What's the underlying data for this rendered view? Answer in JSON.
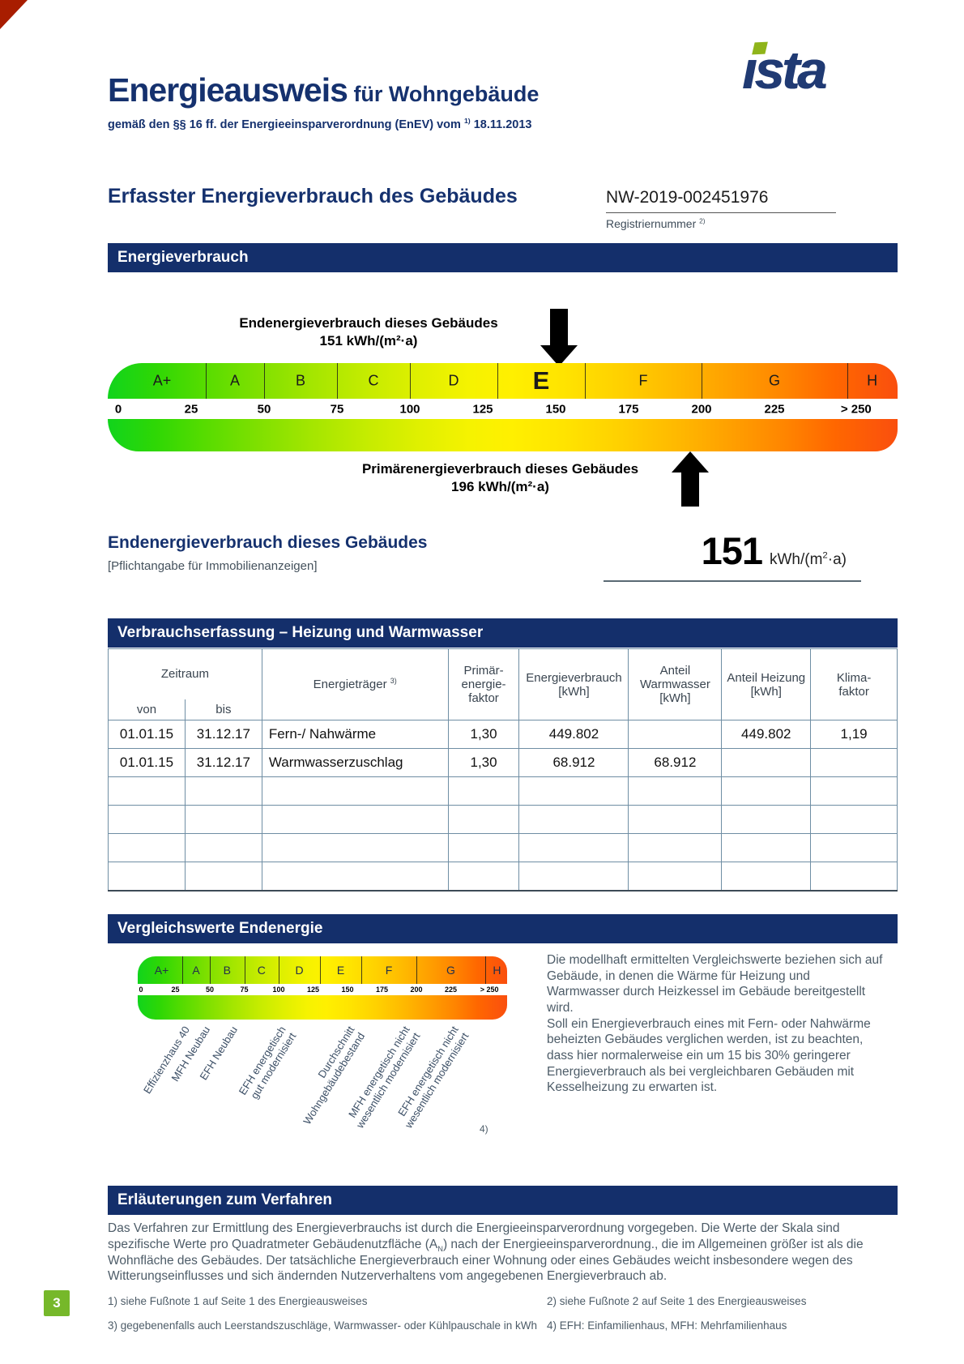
{
  "page": {
    "number": "3"
  },
  "colors": {
    "navy": "#142f6b",
    "badge_green": "#76b82a",
    "logo_green": "#8fb41a",
    "table_border": "#6f8ea4",
    "body_slate": "#4d5c68",
    "scale_gradient": [
      "#11d41c",
      "#55dc00",
      "#a5e600",
      "#e2f000",
      "#fff000",
      "#ffd000",
      "#ff9f00",
      "#ff6700",
      "#fa4f0e"
    ]
  },
  "header": {
    "title": "Energieausweis",
    "title_suffix": " für Wohngebäude",
    "subtitle_prefix": "gemäß den §§ 16 ff. der Energieeinsparverordnung (EnEV) vom ",
    "subtitle_sup": "1)",
    "subtitle_date": " 18.11.2013",
    "logo_text": "ısta"
  },
  "section_heading": "Erfasster Energieverbrauch des Gebäudes",
  "registration": {
    "number": "NW-2019-002451976",
    "label": "Registriernummer ",
    "label_sup": "2)"
  },
  "banners": {
    "energy_consumption": "Energieverbrauch",
    "consumption_table": "Verbrauchserfassung – Heizung und Warmwasser",
    "comparison": "Vergleichswerte Endenergie",
    "explanation": "Erläuterungen zum Verfahren"
  },
  "chart_data": [
    {
      "type": "scale",
      "title": "Energieverbrauch",
      "xlabel": "kWh/(m²·a)",
      "axis_range": [
        0,
        267
      ],
      "bands": [
        {
          "label": "A+",
          "from": 0,
          "to": 30
        },
        {
          "label": "A",
          "from": 30,
          "to": 50
        },
        {
          "label": "B",
          "from": 50,
          "to": 75
        },
        {
          "label": "C",
          "from": 75,
          "to": 100
        },
        {
          "label": "D",
          "from": 100,
          "to": 130
        },
        {
          "label": "E",
          "from": 130,
          "to": 160,
          "emphasized": true
        },
        {
          "label": "F",
          "from": 160,
          "to": 200
        },
        {
          "label": "G",
          "from": 200,
          "to": 250
        },
        {
          "label": "H",
          "from": 250,
          "to": 267
        }
      ],
      "ticks": [
        "0",
        "25",
        "50",
        "75",
        "100",
        "125",
        "150",
        "175",
        "200",
        "225",
        "> 250"
      ],
      "tick_values": [
        0,
        25,
        50,
        75,
        100,
        125,
        150,
        175,
        200,
        225,
        253
      ],
      "markers": [
        {
          "name": "Endenergieverbrauch",
          "value": 151,
          "direction": "down",
          "label_line1": "Endenergieverbrauch dieses Gebäudes",
          "label_line2": "151 kWh/(m²·a)"
        },
        {
          "name": "Primärenergieverbrauch",
          "value": 196,
          "direction": "up",
          "label_line1": "Primärenergieverbrauch dieses Gebäudes",
          "label_line2": "196 kWh/(m²·a)"
        }
      ]
    },
    {
      "type": "scale",
      "title": "Vergleichswerte Endenergie",
      "xlabel": "kWh/(m²·a)",
      "axis_range": [
        0,
        267
      ],
      "bands": [
        {
          "label": "A+",
          "from": 0,
          "to": 30
        },
        {
          "label": "A",
          "from": 30,
          "to": 50
        },
        {
          "label": "B",
          "from": 50,
          "to": 75
        },
        {
          "label": "C",
          "from": 75,
          "to": 100
        },
        {
          "label": "D",
          "from": 100,
          "to": 130
        },
        {
          "label": "E",
          "from": 130,
          "to": 160
        },
        {
          "label": "F",
          "from": 160,
          "to": 200
        },
        {
          "label": "G",
          "from": 200,
          "to": 250
        },
        {
          "label": "H",
          "from": 250,
          "to": 267
        }
      ],
      "ticks": [
        "0",
        "25",
        "50",
        "75",
        "100",
        "125",
        "150",
        "175",
        "200",
        "225",
        "> 250"
      ],
      "tick_values": [
        0,
        25,
        50,
        75,
        100,
        125,
        150,
        175,
        200,
        225,
        253
      ],
      "reference_labels": [
        {
          "text": "Effizienzhaus 40",
          "value": 30
        },
        {
          "text": "MFH Neubau",
          "value": 45
        },
        {
          "text": "EFH Neubau",
          "value": 65
        },
        {
          "text": "EFH energetisch\ngut modernisiert",
          "value": 100
        },
        {
          "text": "Durchschnitt\nWohngebäudebestand",
          "value": 150
        },
        {
          "text": "MFH energetisch nicht\nwesentlich modernisiert",
          "value": 190
        },
        {
          "text": "EFH energetisch nicht\nwesentlich modernisiert",
          "value": 225
        }
      ],
      "footnote_marker": "4)"
    }
  ],
  "end_energy": {
    "heading": "Endenergieverbrauch dieses Gebäudes",
    "subheading": "[Pflichtangabe für Immobilienanzeigen]",
    "value": "151",
    "unit_prefix": "kWh/(m",
    "unit_sup": "2",
    "unit_suffix": "·a)"
  },
  "table": {
    "headers": {
      "zeitraum": "Zeitraum",
      "von": "von",
      "bis": "bis",
      "energietraeger": "Energieträger ",
      "energietraeger_sup": "3)",
      "primaerfaktor": "Primär-\nenergie-\nfaktor",
      "energieverbrauch": "Energieverbrauch\n[kWh]",
      "anteil_warmwasser": "Anteil\nWarmwasser\n[kWh]",
      "anteil_heizung": "Anteil Heizung\n[kWh]",
      "klimafaktor": "Klima-\nfaktor"
    },
    "rows": [
      [
        "01.01.15",
        "31.12.17",
        "Fern-/ Nahwärme",
        "1,30",
        "449.802",
        "",
        "449.802",
        "1,19"
      ],
      [
        "01.01.15",
        "31.12.17",
        "Warmwasserzuschlag",
        "1,30",
        "68.912",
        "68.912",
        "",
        ""
      ],
      [
        "",
        "",
        "",
        "",
        "",
        "",
        "",
        ""
      ],
      [
        "",
        "",
        "",
        "",
        "",
        "",
        "",
        ""
      ],
      [
        "",
        "",
        "",
        "",
        "",
        "",
        "",
        ""
      ],
      [
        "",
        "",
        "",
        "",
        "",
        "",
        "",
        ""
      ]
    ]
  },
  "comparison": {
    "paragraphs": [
      "Die modellhaft ermittelten Vergleichswerte beziehen sich auf Gebäude, in denen die Wärme für Heizung und Warmwasser durch Heizkessel im Gebäude bereitgestellt wird.",
      "Soll ein Energieverbrauch eines mit Fern- oder Nahwärme beheizten Gebäudes verglichen werden, ist zu beachten, dass hier normalerweise ein um 15 bis 30% geringerer Energieverbrauch als bei vergleichbaren Gebäuden mit Kesselheizung zu erwarten ist."
    ]
  },
  "explanation": {
    "part1": "Das Verfahren zur Ermittlung des Energieverbrauchs ist durch die Energieeinsparverordnung vorgegeben. Die Werte der Skala sind spezifische Werte pro Quadratmeter Gebäudenutzfläche (A",
    "sub": "N",
    "part2": ") nach der Energieeinsparverordnung., die im Allgemeinen größer ist als die Wohnfläche des Gebäudes. Der tatsächliche Energieverbrauch einer Wohnung oder eines Gebäudes weicht insbesondere wegen des Witterungseinflusses und sich ändernden Nutzerverhaltens vom angegebenen Energieverbrauch ab."
  },
  "footnotes": {
    "left": [
      "1) siehe Fußnote 1 auf Seite 1 des Energieausweises",
      "3) gegebenenfalls auch Leerstandszuschläge, Warmwasser- oder Kühlpauschale in kWh"
    ],
    "right": [
      "2) siehe Fußnote 2 auf Seite 1 des Energieausweises",
      "4) EFH: Einfamilienhaus, MFH: Mehrfamilienhaus"
    ]
  }
}
